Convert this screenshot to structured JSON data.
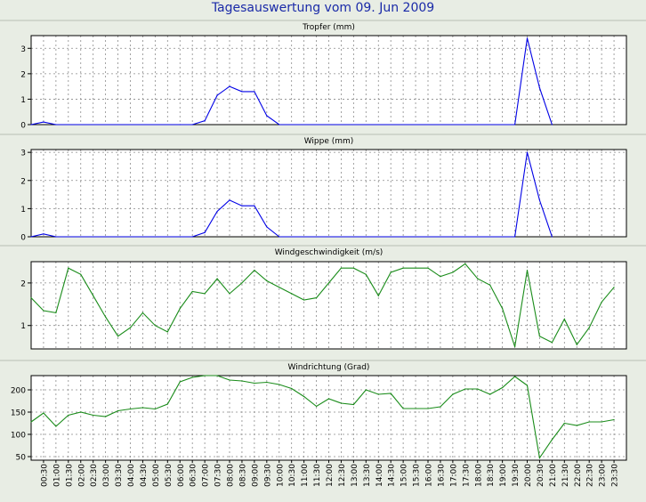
{
  "title": "Tagesauswertung vom 09. Jun 2009",
  "colors": {
    "background": "#e8ede4",
    "plot_bg": "#ffffff",
    "title": "#1a2aa8",
    "blue_series": "#0000e6",
    "green_series": "#1a8c1a",
    "grid": "#8a8a8a"
  },
  "x_ticks": [
    "00:30",
    "01:00",
    "01:30",
    "02:00",
    "02:30",
    "03:00",
    "03:30",
    "04:00",
    "04:30",
    "05:00",
    "05:30",
    "06:00",
    "06:30",
    "07:00",
    "07:30",
    "08:00",
    "08:30",
    "09:00",
    "09:30",
    "10:00",
    "10:30",
    "11:00",
    "11:30",
    "12:00",
    "12:30",
    "13:00",
    "13:30",
    "14:00",
    "14:30",
    "15:00",
    "15:30",
    "16:00",
    "16:30",
    "17:00",
    "17:30",
    "18:00",
    "18:30",
    "19:00",
    "19:30",
    "20:00",
    "20:30",
    "21:00",
    "21:30",
    "22:00",
    "22:30",
    "23:00",
    "23:30"
  ],
  "chart_data": [
    {
      "type": "line",
      "title": "Tropfer (mm)",
      "color": "blue",
      "ylim": [
        0,
        3.5
      ],
      "yticks": [
        0,
        1,
        2,
        3
      ],
      "grid": true,
      "x": [
        "00:00",
        "00:30",
        "01:00",
        "06:00",
        "06:30",
        "07:00",
        "07:30",
        "08:00",
        "08:30",
        "09:00",
        "09:30",
        "10:00",
        "19:30",
        "20:00",
        "20:30",
        "21:00"
      ],
      "y": [
        0,
        0.1,
        0,
        0,
        0,
        0.15,
        1.15,
        1.5,
        1.3,
        1.3,
        0.35,
        0,
        0,
        3.4,
        1.45,
        0
      ]
    },
    {
      "type": "line",
      "title": "Wippe (mm)",
      "color": "blue",
      "ylim": [
        0,
        3.1
      ],
      "yticks": [
        0,
        1,
        2,
        3
      ],
      "grid": true,
      "x": [
        "00:00",
        "00:30",
        "01:00",
        "06:00",
        "06:30",
        "07:00",
        "07:30",
        "08:00",
        "08:30",
        "09:00",
        "09:30",
        "10:00",
        "19:30",
        "20:00",
        "20:30",
        "21:00"
      ],
      "y": [
        0,
        0.1,
        0,
        0,
        0,
        0.15,
        0.9,
        1.3,
        1.1,
        1.1,
        0.35,
        0,
        0,
        3.0,
        1.3,
        0
      ]
    },
    {
      "type": "line",
      "title": "Windgeschwindigkeit (m/s)",
      "color": "green",
      "ylim": [
        0.45,
        2.5
      ],
      "yticks": [
        1,
        2
      ],
      "grid": true,
      "x": [
        "00:00",
        "00:30",
        "01:00",
        "01:30",
        "02:00",
        "02:30",
        "03:00",
        "03:30",
        "04:00",
        "04:30",
        "05:00",
        "05:30",
        "06:00",
        "06:30",
        "07:00",
        "07:30",
        "08:00",
        "08:30",
        "09:00",
        "09:30",
        "10:00",
        "10:30",
        "11:00",
        "11:30",
        "12:00",
        "12:30",
        "13:00",
        "13:30",
        "14:00",
        "14:30",
        "15:00",
        "15:30",
        "16:00",
        "16:30",
        "17:00",
        "17:30",
        "18:00",
        "18:30",
        "19:00",
        "19:30",
        "20:00",
        "20:30",
        "21:00",
        "21:30",
        "22:00",
        "22:30",
        "23:00",
        "23:30"
      ],
      "y": [
        1.65,
        1.35,
        1.3,
        2.35,
        2.2,
        1.7,
        1.2,
        0.75,
        0.95,
        1.3,
        1.0,
        0.85,
        1.4,
        1.8,
        1.75,
        2.1,
        1.75,
        2.0,
        2.3,
        2.05,
        1.9,
        1.75,
        1.6,
        1.65,
        2.0,
        2.35,
        2.35,
        2.2,
        1.7,
        2.25,
        2.35,
        2.35,
        2.35,
        2.15,
        2.25,
        2.45,
        2.1,
        1.95,
        1.4,
        0.5,
        2.3,
        0.75,
        0.6,
        1.15,
        0.55,
        0.95,
        1.55,
        1.9
      ]
    },
    {
      "type": "line",
      "title": "Windrichtung (Grad)",
      "color": "green",
      "ylim": [
        42,
        232
      ],
      "yticks": [
        50,
        100,
        150,
        200
      ],
      "grid": true,
      "x": [
        "00:00",
        "00:30",
        "01:00",
        "01:30",
        "02:00",
        "02:30",
        "03:00",
        "03:30",
        "04:00",
        "04:30",
        "05:00",
        "05:30",
        "06:00",
        "06:30",
        "07:00",
        "07:30",
        "08:00",
        "08:30",
        "09:00",
        "09:30",
        "10:00",
        "10:30",
        "11:00",
        "11:30",
        "12:00",
        "12:30",
        "13:00",
        "13:30",
        "14:00",
        "14:30",
        "15:00",
        "15:30",
        "16:00",
        "16:30",
        "17:00",
        "17:30",
        "18:00",
        "18:30",
        "19:00",
        "19:30",
        "20:00",
        "20:30",
        "21:00",
        "21:30",
        "22:00",
        "22:30",
        "23:00",
        "23:30"
      ],
      "y": [
        128,
        148,
        118,
        143,
        150,
        143,
        140,
        153,
        157,
        160,
        157,
        168,
        218,
        228,
        232,
        232,
        222,
        220,
        215,
        217,
        212,
        203,
        185,
        163,
        180,
        170,
        167,
        200,
        190,
        192,
        158,
        158,
        158,
        162,
        190,
        202,
        202,
        190,
        205,
        230,
        210,
        47,
        88,
        125,
        120,
        128,
        128,
        133
      ]
    }
  ]
}
